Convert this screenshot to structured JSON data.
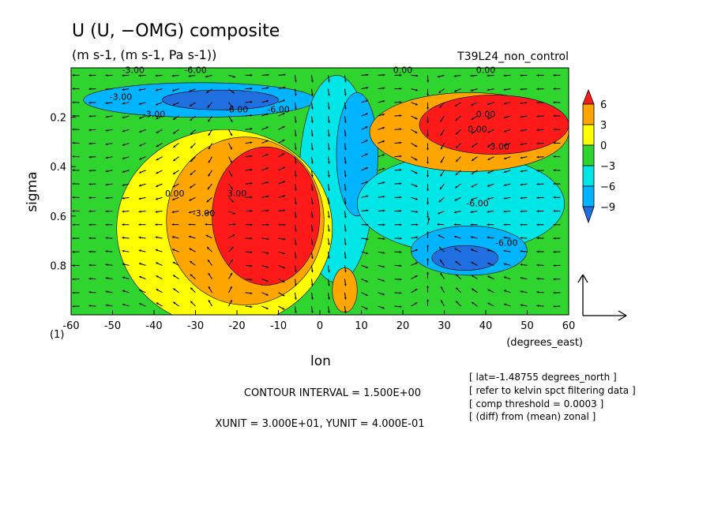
{
  "chart_data": {
    "type": "heatmap",
    "title": "U (U, −OMG) composite",
    "subtitle": "(m s-1, (m s-1, Pa s-1))",
    "run_label": "T39L24_non_control",
    "xlabel": "lon",
    "xunits": "(degrees_east)",
    "ylabel": "sigma",
    "panel_label": "(1)",
    "xlim": [
      -60,
      60
    ],
    "ylim": [
      1.0,
      0.0
    ],
    "y_inverted": true,
    "x_ticks": [
      -60,
      -50,
      -40,
      -30,
      -20,
      -10,
      0,
      10,
      20,
      30,
      40,
      50,
      60
    ],
    "x_tick_labels": [
      "-60",
      "-50",
      "-40",
      "-30",
      "-20",
      "-10",
      "0",
      "10",
      "20",
      "30",
      "40",
      "50",
      "60"
    ],
    "y_ticks": [
      0.2,
      0.4,
      0.6,
      0.8
    ],
    "y_tick_labels": [
      "0.2",
      "0.4",
      "0.6",
      "0.8"
    ],
    "colorbar": {
      "levels": [
        -9,
        -6,
        -3,
        0,
        3,
        6
      ],
      "tick_labels": [
        "6",
        "3",
        "0",
        "−3",
        "−6",
        "−9"
      ],
      "colors": [
        "#1f6fe0",
        "#00b4ff",
        "#00e5e5",
        "#2fd42f",
        "#ffff00",
        "#ffa500",
        "#ff1a1a"
      ]
    },
    "contour_labels": [
      "-3.00",
      "-3.00",
      "-6.00",
      "-6.00",
      "0.00",
      "-3.00",
      "3.00",
      "0.00",
      "0.00",
      "-3.00",
      "-6.00",
      "-3.00",
      "-6.00",
      "0.00",
      "0.00",
      "-6.00"
    ],
    "contour_interval_text": "CONTOUR INTERVAL = 1.500E+00",
    "unit_text": "XUNIT = 3.000E+01, YUNIT = 4.000E-01",
    "info_lines": [
      "[ lat=-1.48755 degrees_north ]",
      "[ refer to kelvin spct filtering data ]",
      "[ comp threshold = 0.0003 ]",
      "[ (diff) from (mean) zonal ]"
    ],
    "blobs": [
      {
        "level": -6,
        "cx": -29,
        "cy": 0.13,
        "rx": 28,
        "ry": 0.07
      },
      {
        "level": -9,
        "cx": -24,
        "cy": 0.13,
        "rx": 14,
        "ry": 0.04
      },
      {
        "level": -3,
        "cx": 4,
        "cy": 0.45,
        "rx": 9,
        "ry": 0.42
      },
      {
        "level": -6,
        "cx": 9,
        "cy": 0.35,
        "rx": 5,
        "ry": 0.25
      },
      {
        "level": -3,
        "cx": 34,
        "cy": 0.55,
        "rx": 25,
        "ry": 0.2
      },
      {
        "level": -6,
        "cx": 36,
        "cy": 0.74,
        "rx": 14,
        "ry": 0.1
      },
      {
        "level": -9,
        "cx": 35,
        "cy": 0.77,
        "rx": 8,
        "ry": 0.05
      },
      {
        "level": 3,
        "cx": -23,
        "cy": 0.65,
        "rx": 26,
        "ry": 0.4
      },
      {
        "level": 6,
        "cx": -18,
        "cy": 0.62,
        "rx": 19,
        "ry": 0.34
      },
      {
        "level": 9,
        "cx": -13,
        "cy": 0.6,
        "rx": 13,
        "ry": 0.28
      },
      {
        "level": 6,
        "cx": 36,
        "cy": 0.26,
        "rx": 24,
        "ry": 0.16
      },
      {
        "level": 9,
        "cx": 42,
        "cy": 0.23,
        "rx": 18,
        "ry": 0.12
      },
      {
        "level": 6,
        "cx": 6,
        "cy": 0.9,
        "rx": 3,
        "ry": 0.09
      }
    ]
  }
}
